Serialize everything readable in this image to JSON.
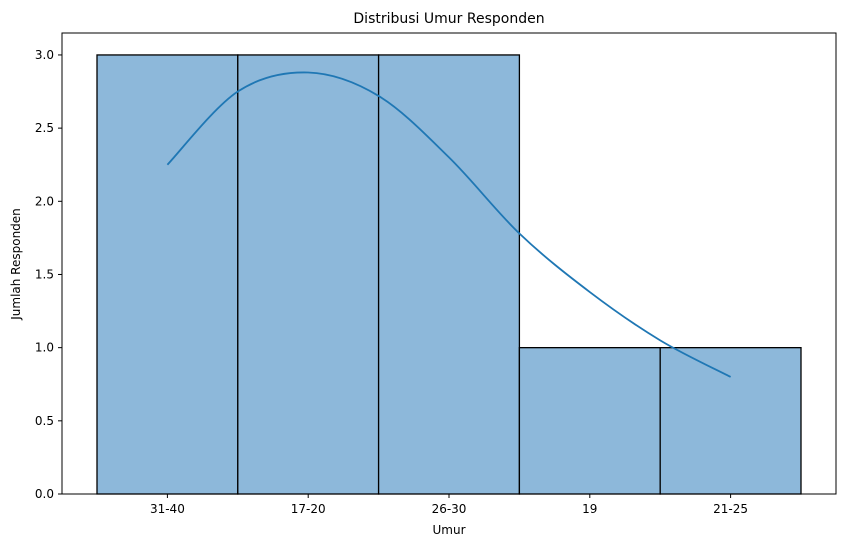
{
  "chart_data": {
    "type": "bar",
    "title": "Distribusi Umur Responden",
    "xlabel": "Umur",
    "ylabel": "Jumlah Responden",
    "categories": [
      "31-40",
      "17-20",
      "26-30",
      "19",
      "21-25"
    ],
    "values": [
      3,
      3,
      3,
      1,
      1
    ],
    "ylim": [
      0,
      3.15
    ],
    "yticks": [
      "0.0",
      "0.5",
      "1.0",
      "1.5",
      "2.0",
      "2.5",
      "3.0"
    ],
    "kde_curve": {
      "x": [
        0.0,
        0.5,
        1.0,
        1.5,
        2.0,
        2.5,
        3.0,
        3.5,
        4.0
      ],
      "y": [
        2.25,
        2.75,
        2.88,
        2.72,
        2.3,
        1.78,
        1.38,
        1.05,
        0.8
      ]
    },
    "bar_color": "#8db8da",
    "bar_edge_color": "#000000",
    "line_color": "#1f77b4",
    "grid": false,
    "legend": "none"
  }
}
